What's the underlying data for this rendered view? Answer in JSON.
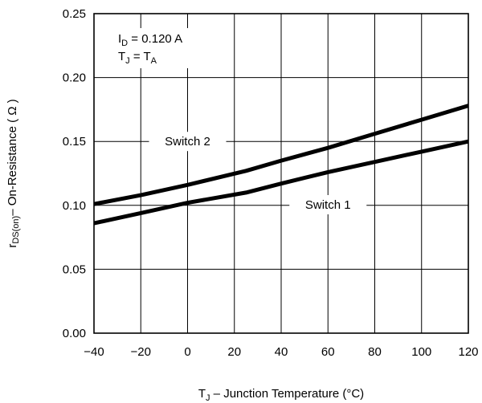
{
  "chart_data": {
    "type": "line",
    "title": "",
    "xlabel": {
      "prefix": "T",
      "sub": "J",
      "rest": " – Junction Temperature (°C)"
    },
    "ylabel": {
      "prefix": "r",
      "sub": "DS(on)",
      "rest": "– On-Resistance ( Ω )"
    },
    "xlim": [
      -40,
      120
    ],
    "ylim": [
      0.0,
      0.25
    ],
    "x_ticks": [
      "−40",
      "−20",
      "0",
      "20",
      "40",
      "60",
      "80",
      "100",
      "120"
    ],
    "y_ticks": [
      "0.00",
      "0.05",
      "0.10",
      "0.15",
      "0.20",
      "0.25"
    ],
    "grid": true,
    "annotation": {
      "line1": {
        "prefix": "I",
        "sub": "D",
        "rest": " = 0.120 A"
      },
      "line2": {
        "prefix": "T",
        "sub": "J",
        "mid": " = T",
        "sub2": "A"
      }
    },
    "series": [
      {
        "name": "Switch 2",
        "x": [
          -40,
          -20,
          0,
          25,
          40,
          60,
          80,
          100,
          120
        ],
        "y": [
          0.101,
          0.108,
          0.116,
          0.127,
          0.135,
          0.145,
          0.156,
          0.167,
          0.178
        ]
      },
      {
        "name": "Switch 1",
        "x": [
          -40,
          -20,
          0,
          25,
          40,
          60,
          80,
          100,
          120
        ],
        "y": [
          0.086,
          0.094,
          0.102,
          0.11,
          0.117,
          0.126,
          0.134,
          0.142,
          0.15
        ]
      }
    ]
  }
}
